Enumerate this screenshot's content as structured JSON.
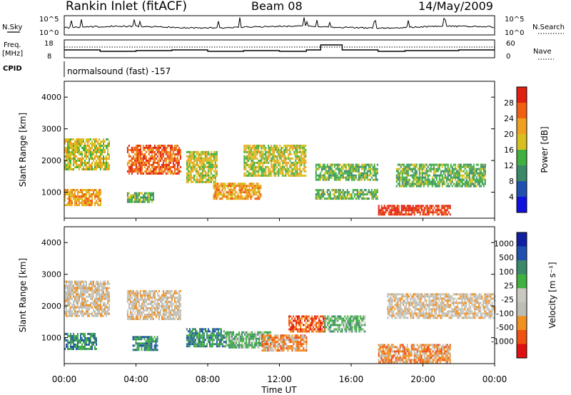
{
  "header": {
    "station": "Rankin Inlet (fitACF)",
    "beam": "Beam 08",
    "date": "14/May/2009"
  },
  "strips": {
    "nsky_label": "N.Sky",
    "nsearch_label": "N.Search",
    "noise_ticks": [
      "10^5",
      "10^0"
    ],
    "freq_label_1": "Freq.",
    "freq_label_2": "[MHz]",
    "freq_ticks": [
      "18",
      "8"
    ],
    "nave_label": "Nave",
    "nave_ticks": [
      "60",
      "0"
    ],
    "cpid_label": "CPID",
    "cpid_value": "normalsound (fast) -157"
  },
  "colors": {
    "power": [
      "#1010e0",
      "#2050b0",
      "#3a8a6a",
      "#40b040",
      "#d8c020",
      "#f0a020",
      "#f06010",
      "#e02010"
    ],
    "velocity": [
      "#e01010",
      "#f05010",
      "#f09020",
      "#bdbdb6",
      "#c8c8c0",
      "#40b040",
      "#3a8a6a",
      "#2050b0",
      "#1020a0"
    ]
  },
  "chart_data": [
    {
      "type": "heatmap",
      "name": "power-panel",
      "ylabel": "Slant Range [km]",
      "ylim": [
        180,
        4500
      ],
      "yticks": [
        "1000",
        "2000",
        "3000",
        "4000"
      ],
      "colorbar_label": "Power [dB]",
      "colorbar_ticks": [
        "4",
        "8",
        "12",
        "16",
        "20",
        "24",
        "28"
      ],
      "bands": [
        {
          "from": 0.0,
          "to": 2.5,
          "range": [
            1700,
            2700
          ],
          "level": 4
        },
        {
          "from": 0.0,
          "to": 2.0,
          "range": [
            600,
            1100
          ],
          "level": 5
        },
        {
          "from": 3.5,
          "to": 6.5,
          "range": [
            1600,
            2500
          ],
          "level": 6
        },
        {
          "from": 3.5,
          "to": 5.0,
          "range": [
            700,
            1000
          ],
          "level": 3
        },
        {
          "from": 6.8,
          "to": 8.5,
          "range": [
            1300,
            2300
          ],
          "level": 4
        },
        {
          "from": 8.3,
          "to": 11.0,
          "range": [
            800,
            1300
          ],
          "level": 5
        },
        {
          "from": 10.0,
          "to": 13.5,
          "range": [
            1500,
            2500
          ],
          "level": 4
        },
        {
          "from": 14.0,
          "to": 17.5,
          "range": [
            1400,
            1900
          ],
          "level": 3
        },
        {
          "from": 14.0,
          "to": 17.5,
          "range": [
            800,
            1100
          ],
          "level": 3
        },
        {
          "from": 17.5,
          "to": 21.5,
          "range": [
            300,
            600
          ],
          "level": 7
        },
        {
          "from": 18.5,
          "to": 23.5,
          "range": [
            1200,
            1900
          ],
          "level": 3
        }
      ]
    },
    {
      "type": "heatmap",
      "name": "velocity-panel",
      "ylabel": "Slant Range [km]",
      "ylim": [
        180,
        4500
      ],
      "yticks": [
        "1000",
        "2000",
        "3000",
        "4000"
      ],
      "colorbar_label": "Velocity [m s⁻¹]",
      "colorbar_ticks": [
        "1000",
        "500",
        "100",
        "25",
        "-25",
        "-100",
        "-500",
        "-1000"
      ],
      "bands": [
        {
          "from": 0.0,
          "to": 2.5,
          "range": [
            1700,
            2800
          ],
          "level": 3
        },
        {
          "from": 0.0,
          "to": 1.8,
          "range": [
            650,
            1150
          ],
          "level": 6
        },
        {
          "from": 3.5,
          "to": 6.5,
          "range": [
            1600,
            2500
          ],
          "level": 3
        },
        {
          "from": 3.8,
          "to": 5.2,
          "range": [
            600,
            1050
          ],
          "level": 6
        },
        {
          "from": 6.8,
          "to": 9.0,
          "range": [
            700,
            1300
          ],
          "level": 6
        },
        {
          "from": 9.0,
          "to": 11.5,
          "range": [
            700,
            1200
          ],
          "level": 5
        },
        {
          "from": 11.0,
          "to": 13.5,
          "range": [
            600,
            1100
          ],
          "level": 2
        },
        {
          "from": 12.5,
          "to": 14.5,
          "range": [
            1200,
            1700
          ],
          "level": 1
        },
        {
          "from": 14.5,
          "to": 16.8,
          "range": [
            1200,
            1700
          ],
          "level": 5
        },
        {
          "from": 17.5,
          "to": 21.5,
          "range": [
            250,
            800
          ],
          "level": 2
        },
        {
          "from": 18.0,
          "to": 24.0,
          "range": [
            1600,
            2400
          ],
          "level": 3
        }
      ]
    }
  ],
  "xaxis": {
    "label": "Time UT",
    "ticks": [
      "00:00",
      "04:00",
      "08:00",
      "12:00",
      "16:00",
      "20:00",
      "00:00"
    ]
  }
}
